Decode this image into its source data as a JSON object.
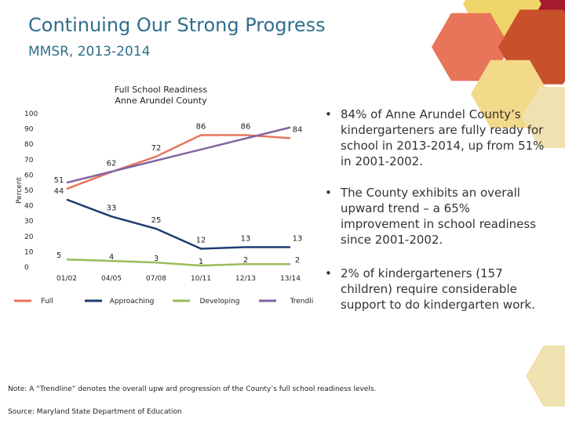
{
  "slide": {
    "title": "Continuing Our Strong Progress",
    "subtitle": "MMSR, 2013-2014",
    "bullets": [
      "84% of Anne Arundel County’s kindergarteners are fully ready for school in 2013-2014, up from 51% in 2001-2002.",
      "The County exhibits an overall upward trend – a 65% improvement in school readiness since 2001-2002.",
      "2% of kindergarteners (157 children) require considerable support to do kindergarten work."
    ],
    "bullet_symbol": "•",
    "note": "Note: A “Trendline” denotes the overall upw ard progression of the County’s full school readiness levels.",
    "source": "Source: Maryland State Department of Education"
  },
  "colors": {
    "title": "#2f6e8c",
    "full": "#e8745a",
    "approaching": "#1f3b72",
    "developing": "#9bbb59",
    "trendline": "#8064a2",
    "deco": [
      "#a6192e",
      "#e8745a",
      "#efd46a",
      "#c8502a",
      "#f3d98a",
      "#f0e2b0"
    ]
  },
  "chart_data": {
    "type": "line",
    "title": "Full School Readiness",
    "subtitle": "Anne Arundel County",
    "ylabel": "Percent",
    "xlabel": "",
    "ylim": [
      0,
      100
    ],
    "yticks": [
      0,
      10,
      20,
      30,
      40,
      50,
      60,
      70,
      80,
      90,
      100
    ],
    "categories": [
      "01/02",
      "04/05",
      "07/08",
      "10/11",
      "12/13",
      "13/14"
    ],
    "series": [
      {
        "name": "Full",
        "values": [
          51,
          62,
          72,
          86,
          86,
          84
        ]
      },
      {
        "name": "Approaching",
        "values": [
          44,
          33,
          25,
          12,
          13,
          13
        ]
      },
      {
        "name": "Developing",
        "values": [
          5,
          4,
          3,
          1,
          2,
          2
        ]
      },
      {
        "name": "Trendline",
        "values": [
          55,
          null,
          null,
          null,
          null,
          91
        ]
      }
    ],
    "legend_position": "bottom",
    "grid": false
  }
}
